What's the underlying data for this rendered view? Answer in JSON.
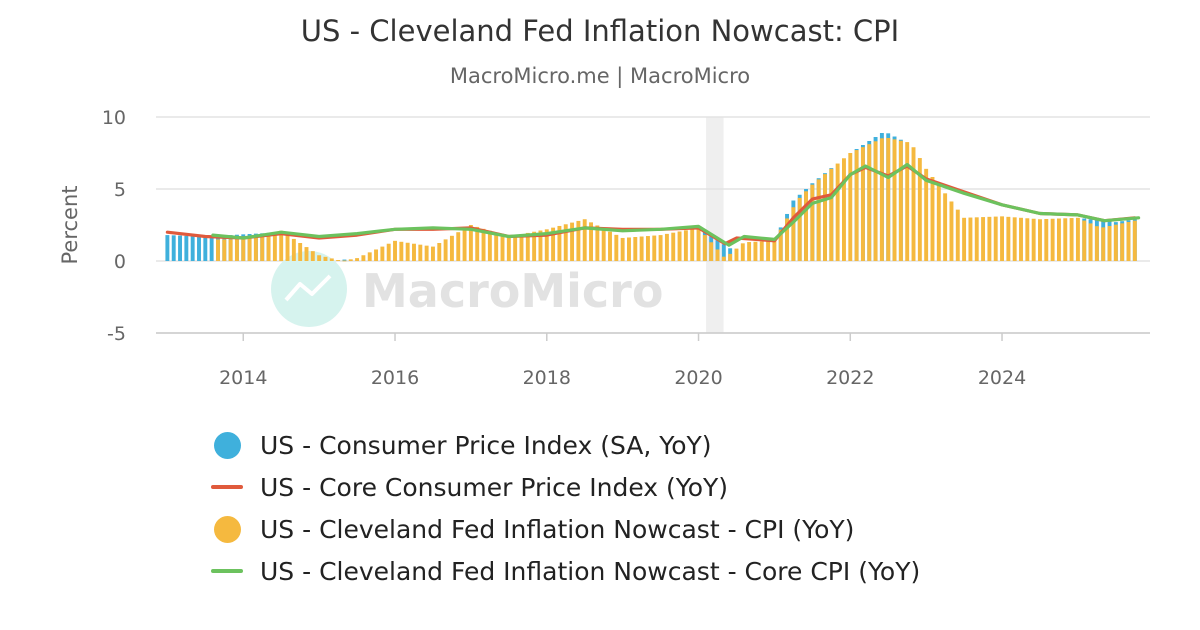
{
  "chart_data": {
    "type": "bar",
    "title": "US - Cleveland Fed Inflation Nowcast: CPI",
    "subtitle": "MacroMicro.me | MacroMicro",
    "ylabel": "Percent",
    "ylim": [
      -5,
      10
    ],
    "yticks": [
      10,
      5,
      0,
      -5
    ],
    "xlim": [
      2012.85,
      2025.95
    ],
    "xticks": [
      2014,
      2016,
      2018,
      2020,
      2022,
      2024
    ],
    "shaded_region": [
      2020.1,
      2020.33
    ],
    "watermark": "MacroMicro",
    "legend_position": "bottom",
    "series": [
      {
        "name": "US - Consumer Price Index (SA, YoY)",
        "type": "bar",
        "color": "#3fb0dc",
        "legend_marker": "dot",
        "points": [
          [
            2013.0,
            1.8
          ],
          [
            2013.5,
            1.7
          ],
          [
            2014.5,
            2.0
          ],
          [
            2015.0,
            -0.1
          ],
          [
            2015.5,
            0.2
          ],
          [
            2016.0,
            1.4
          ],
          [
            2016.5,
            1.0
          ],
          [
            2017.0,
            2.5
          ],
          [
            2017.5,
            1.7
          ],
          [
            2018.0,
            2.2
          ],
          [
            2018.5,
            2.9
          ],
          [
            2019.0,
            1.6
          ],
          [
            2019.5,
            1.8
          ],
          [
            2020.0,
            2.3
          ],
          [
            2020.5,
            0.6
          ],
          [
            2021.0,
            1.4
          ],
          [
            2021.25,
            4.2
          ],
          [
            2021.5,
            5.4
          ],
          [
            2022.0,
            7.5
          ],
          [
            2022.45,
            9.0
          ],
          [
            2022.75,
            8.2
          ],
          [
            2023.0,
            6.4
          ],
          [
            2023.5,
            3.0
          ],
          [
            2024.0,
            3.1
          ],
          [
            2024.5,
            2.9
          ],
          [
            2025.0,
            3.0
          ],
          [
            2025.5,
            2.7
          ],
          [
            2025.75,
            2.9
          ]
        ]
      },
      {
        "name": "US - Core Consumer Price Index (YoY)",
        "type": "line",
        "color": "#e05a3c",
        "legend_marker": "line",
        "points": [
          [
            2013.0,
            2.0
          ],
          [
            2013.5,
            1.7
          ],
          [
            2014.0,
            1.6
          ],
          [
            2014.5,
            1.9
          ],
          [
            2015.0,
            1.6
          ],
          [
            2015.5,
            1.8
          ],
          [
            2016.0,
            2.2
          ],
          [
            2016.5,
            2.2
          ],
          [
            2017.0,
            2.3
          ],
          [
            2017.5,
            1.7
          ],
          [
            2018.0,
            1.8
          ],
          [
            2018.5,
            2.3
          ],
          [
            2019.0,
            2.2
          ],
          [
            2019.5,
            2.2
          ],
          [
            2020.0,
            2.3
          ],
          [
            2020.35,
            1.2
          ],
          [
            2020.5,
            1.6
          ],
          [
            2021.0,
            1.4
          ],
          [
            2021.25,
            3.0
          ],
          [
            2021.5,
            4.3
          ],
          [
            2021.75,
            4.6
          ],
          [
            2022.0,
            6.0
          ],
          [
            2022.2,
            6.5
          ],
          [
            2022.5,
            5.9
          ],
          [
            2022.75,
            6.6
          ],
          [
            2023.0,
            5.7
          ],
          [
            2023.5,
            4.8
          ],
          [
            2024.0,
            3.9
          ],
          [
            2024.5,
            3.3
          ],
          [
            2025.0,
            3.2
          ],
          [
            2025.35,
            2.8
          ],
          [
            2025.75,
            3.0
          ]
        ]
      },
      {
        "name": "US - Cleveland Fed Inflation Nowcast - CPI (YoY)",
        "type": "bar",
        "color": "#f5b93f",
        "legend_marker": "dot",
        "points": [
          [
            2013.6,
            1.5
          ],
          [
            2014.0,
            1.5
          ],
          [
            2014.5,
            2.1
          ],
          [
            2015.0,
            0.4
          ],
          [
            2015.3,
            0.0
          ],
          [
            2015.5,
            0.2
          ],
          [
            2016.0,
            1.4
          ],
          [
            2016.5,
            1.0
          ],
          [
            2017.0,
            2.5
          ],
          [
            2017.5,
            1.7
          ],
          [
            2018.0,
            2.2
          ],
          [
            2018.5,
            2.9
          ],
          [
            2019.0,
            1.6
          ],
          [
            2019.5,
            1.8
          ],
          [
            2020.0,
            2.3
          ],
          [
            2020.35,
            0.2
          ],
          [
            2020.6,
            1.3
          ],
          [
            2021.0,
            1.4
          ],
          [
            2021.3,
            4.2
          ],
          [
            2021.5,
            5.3
          ],
          [
            2022.0,
            7.5
          ],
          [
            2022.45,
            8.6
          ],
          [
            2022.8,
            8.2
          ],
          [
            2023.0,
            6.4
          ],
          [
            2023.5,
            3.0
          ],
          [
            2024.0,
            3.1
          ],
          [
            2024.5,
            2.9
          ],
          [
            2025.0,
            3.0
          ],
          [
            2025.3,
            2.3
          ],
          [
            2025.75,
            2.8
          ]
        ]
      },
      {
        "name": "US - Cleveland Fed Inflation Nowcast - Core CPI (YoY)",
        "type": "line",
        "color": "#6cc25e",
        "legend_marker": "line",
        "points": [
          [
            2013.6,
            1.8
          ],
          [
            2014.0,
            1.6
          ],
          [
            2014.5,
            2.0
          ],
          [
            2015.0,
            1.7
          ],
          [
            2015.5,
            1.9
          ],
          [
            2016.0,
            2.2
          ],
          [
            2016.5,
            2.3
          ],
          [
            2017.0,
            2.2
          ],
          [
            2017.5,
            1.7
          ],
          [
            2018.0,
            1.9
          ],
          [
            2018.5,
            2.3
          ],
          [
            2019.0,
            2.1
          ],
          [
            2019.5,
            2.2
          ],
          [
            2020.0,
            2.4
          ],
          [
            2020.4,
            1.1
          ],
          [
            2020.6,
            1.7
          ],
          [
            2021.0,
            1.5
          ],
          [
            2021.25,
            2.7
          ],
          [
            2021.5,
            4.0
          ],
          [
            2021.75,
            4.4
          ],
          [
            2022.0,
            6.0
          ],
          [
            2022.2,
            6.6
          ],
          [
            2022.5,
            5.8
          ],
          [
            2022.75,
            6.7
          ],
          [
            2023.0,
            5.6
          ],
          [
            2023.5,
            4.7
          ],
          [
            2024.0,
            3.9
          ],
          [
            2024.5,
            3.3
          ],
          [
            2025.0,
            3.2
          ],
          [
            2025.35,
            2.8
          ],
          [
            2025.8,
            3.0
          ]
        ]
      }
    ]
  }
}
